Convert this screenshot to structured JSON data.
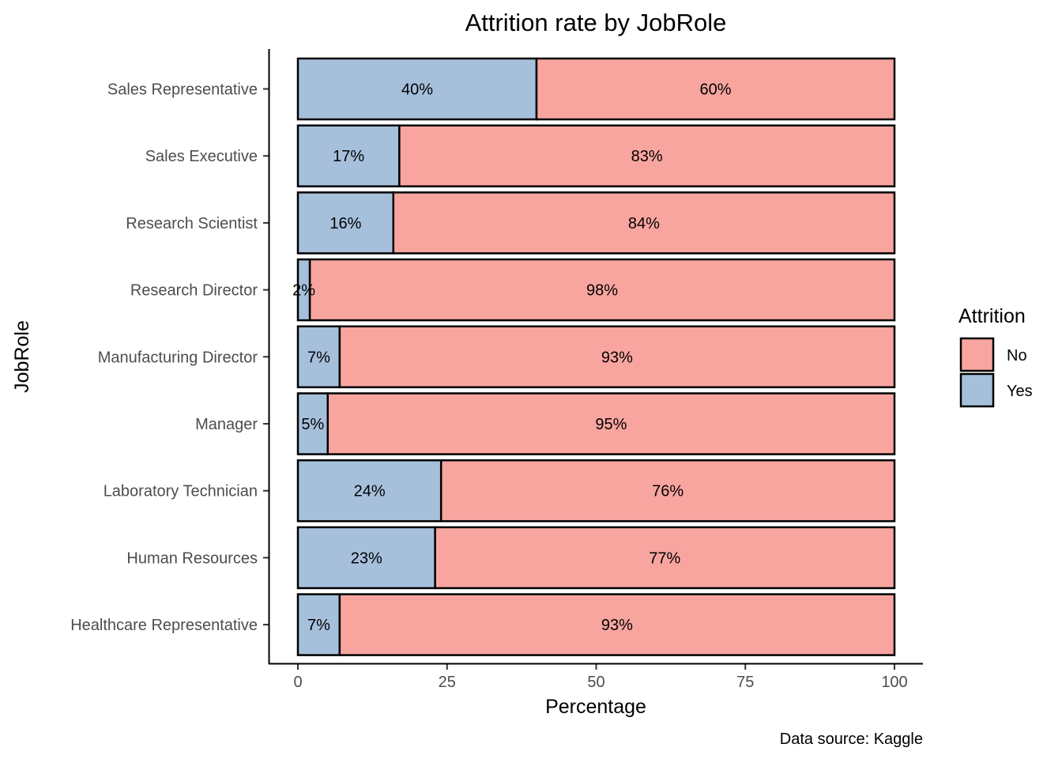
{
  "chart_data": {
    "type": "bar",
    "orientation": "horizontal",
    "stacked": true,
    "title": "Attrition rate by JobRole",
    "xlabel": "Percentage",
    "ylabel": "JobRole",
    "xlim": [
      0,
      100
    ],
    "x_ticks": [
      0,
      25,
      50,
      75,
      100
    ],
    "caption": "Data source: Kaggle",
    "categories": [
      "Healthcare Representative",
      "Human Resources",
      "Laboratory Technician",
      "Manager",
      "Manufacturing Director",
      "Research Director",
      "Research Scientist",
      "Sales Executive",
      "Sales Representative"
    ],
    "series": [
      {
        "name": "Yes",
        "color": "#a6c0dc",
        "values": [
          7,
          23,
          24,
          5,
          7,
          2,
          16,
          17,
          40
        ]
      },
      {
        "name": "No",
        "color": "#f8a5a0",
        "values": [
          93,
          77,
          76,
          95,
          93,
          98,
          84,
          83,
          60
        ]
      }
    ],
    "legend": {
      "title": "Attrition",
      "position": "right",
      "entries": [
        "No",
        "Yes"
      ]
    },
    "grid": false
  }
}
